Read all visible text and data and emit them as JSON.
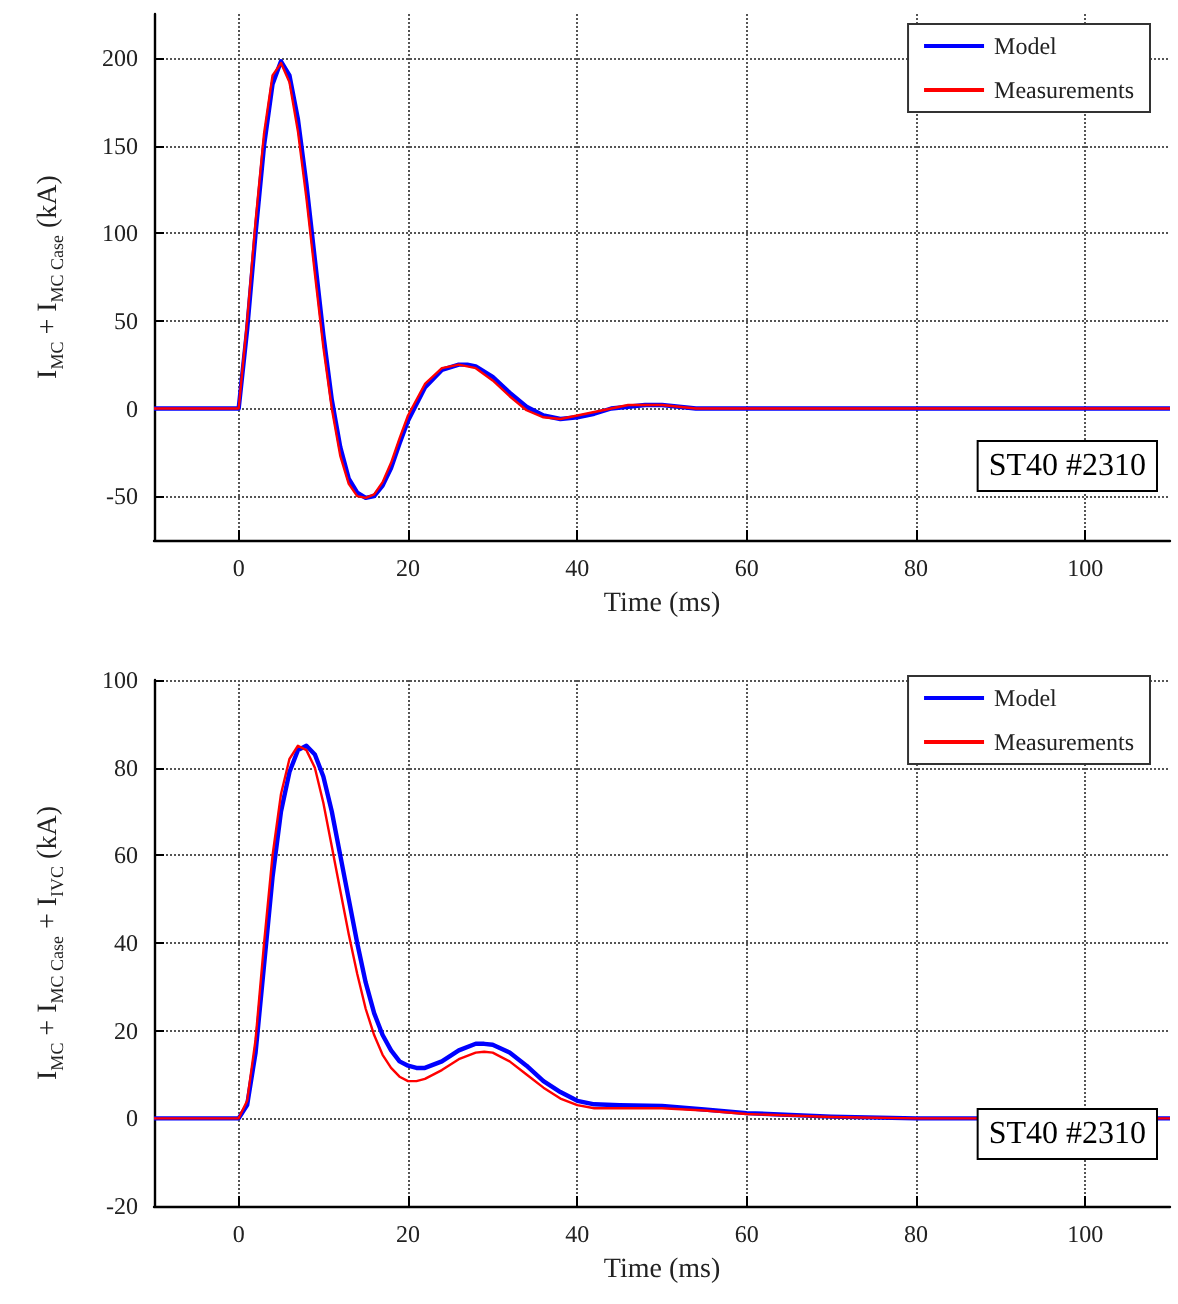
{
  "chart_data": [
    {
      "type": "line",
      "xlabel": "Time (ms)",
      "ylabel": "I$_{MC}$ + I$_{MC Case}$ (kA)",
      "xlim": [
        -10,
        110
      ],
      "xticks": [
        0,
        20,
        40,
        60,
        80,
        100
      ],
      "ylim": [
        -75,
        225
      ],
      "yticks": [
        -50,
        0,
        50,
        100,
        150,
        200
      ],
      "grid": true,
      "legend": "top right",
      "marker": "none",
      "line_style": "solid",
      "annotations": [
        "ST40 #2310"
      ],
      "series": [
        {
          "name": "Model",
          "color": "#0000ff",
          "x": [
            -10,
            0,
            1,
            2,
            3,
            4,
            5,
            6,
            7,
            8,
            9,
            10,
            11,
            12,
            13,
            14,
            15,
            16,
            17,
            18,
            19,
            20,
            22,
            24,
            26,
            27,
            28,
            30,
            32,
            34,
            36,
            38,
            40,
            42,
            44,
            46,
            48,
            50,
            52,
            54,
            56,
            60,
            110
          ],
          "values": [
            0,
            0,
            45,
            100,
            150,
            185,
            198,
            190,
            165,
            128,
            85,
            42,
            5,
            -22,
            -40,
            -48,
            -51,
            -50,
            -44,
            -34,
            -20,
            -7,
            12,
            22,
            25,
            25,
            24,
            18,
            9,
            1,
            -4,
            -6,
            -5,
            -3,
            0,
            1,
            2,
            2,
            1,
            0,
            0,
            0,
            0
          ]
        },
        {
          "name": "Measurements",
          "color": "#ff0000",
          "x": [
            -10,
            0,
            1,
            2,
            3,
            4,
            5,
            6,
            7,
            8,
            9,
            10,
            11,
            12,
            13,
            14,
            15,
            16,
            17,
            18,
            19,
            20,
            22,
            24,
            26,
            27,
            28,
            30,
            32,
            34,
            36,
            38,
            40,
            42,
            44,
            46,
            48,
            50,
            52,
            54,
            56,
            60,
            110
          ],
          "values": [
            0,
            0,
            50,
            107,
            157,
            190,
            197,
            186,
            158,
            120,
            77,
            35,
            0,
            -27,
            -43,
            -50,
            -51,
            -49,
            -42,
            -31,
            -17,
            -4,
            14,
            23,
            25,
            24,
            23,
            16,
            7,
            -1,
            -5,
            -6,
            -4,
            -2,
            0,
            2,
            2,
            2,
            1,
            0,
            0,
            0,
            0
          ]
        }
      ]
    },
    {
      "type": "line",
      "xlabel": "Time (ms)",
      "ylabel": "I$_{MC}$ + I$_{MC Case}$ + I$_{IVC}$ (kA)",
      "xlim": [
        -10,
        110
      ],
      "xticks": [
        0,
        20,
        40,
        60,
        80,
        100
      ],
      "ylim": [
        -20,
        100
      ],
      "yticks": [
        -20,
        0,
        20,
        40,
        60,
        80,
        100
      ],
      "grid": true,
      "legend": "top right",
      "marker": "none",
      "line_style": "solid",
      "annotations": [
        "ST40 #2310"
      ],
      "series": [
        {
          "name": "Model",
          "color": "#0000ff",
          "x": [
            -10,
            0,
            1,
            2,
            3,
            4,
            5,
            6,
            7,
            8,
            9,
            10,
            11,
            12,
            13,
            14,
            15,
            16,
            17,
            18,
            19,
            20,
            21,
            22,
            24,
            26,
            28,
            29,
            30,
            32,
            34,
            36,
            38,
            40,
            42,
            45,
            50,
            55,
            60,
            70,
            80,
            110
          ],
          "values": [
            0,
            0,
            3,
            15,
            35,
            55,
            70,
            79,
            84,
            85,
            83,
            78,
            70,
            60,
            50,
            40,
            31,
            24,
            19,
            15.5,
            13,
            12,
            11.5,
            11.5,
            13,
            15.5,
            17,
            17,
            16.8,
            15,
            12,
            8.5,
            6,
            4,
            3.2,
            3,
            2.8,
            2,
            1.2,
            0.4,
            0,
            0
          ]
        },
        {
          "name": "Measurements",
          "color": "#ff0000",
          "x": [
            -10,
            0,
            1,
            2,
            3,
            4,
            5,
            6,
            7,
            8,
            9,
            10,
            11,
            12,
            13,
            14,
            15,
            16,
            17,
            18,
            19,
            20,
            21,
            22,
            24,
            26,
            28,
            29,
            30,
            32,
            34,
            36,
            38,
            40,
            42,
            45,
            50,
            55,
            60,
            70,
            80,
            110
          ],
          "values": [
            0,
            0,
            4,
            18,
            40,
            60,
            74,
            82,
            85,
            84,
            80,
            72,
            62,
            52,
            42,
            33,
            25,
            19,
            14.5,
            11.5,
            9.5,
            8.5,
            8.5,
            9,
            11,
            13.5,
            15,
            15.2,
            15,
            13,
            10,
            7,
            4.5,
            3,
            2.3,
            2.3,
            2.3,
            1.8,
            1,
            0.3,
            0,
            0
          ]
        }
      ]
    }
  ]
}
